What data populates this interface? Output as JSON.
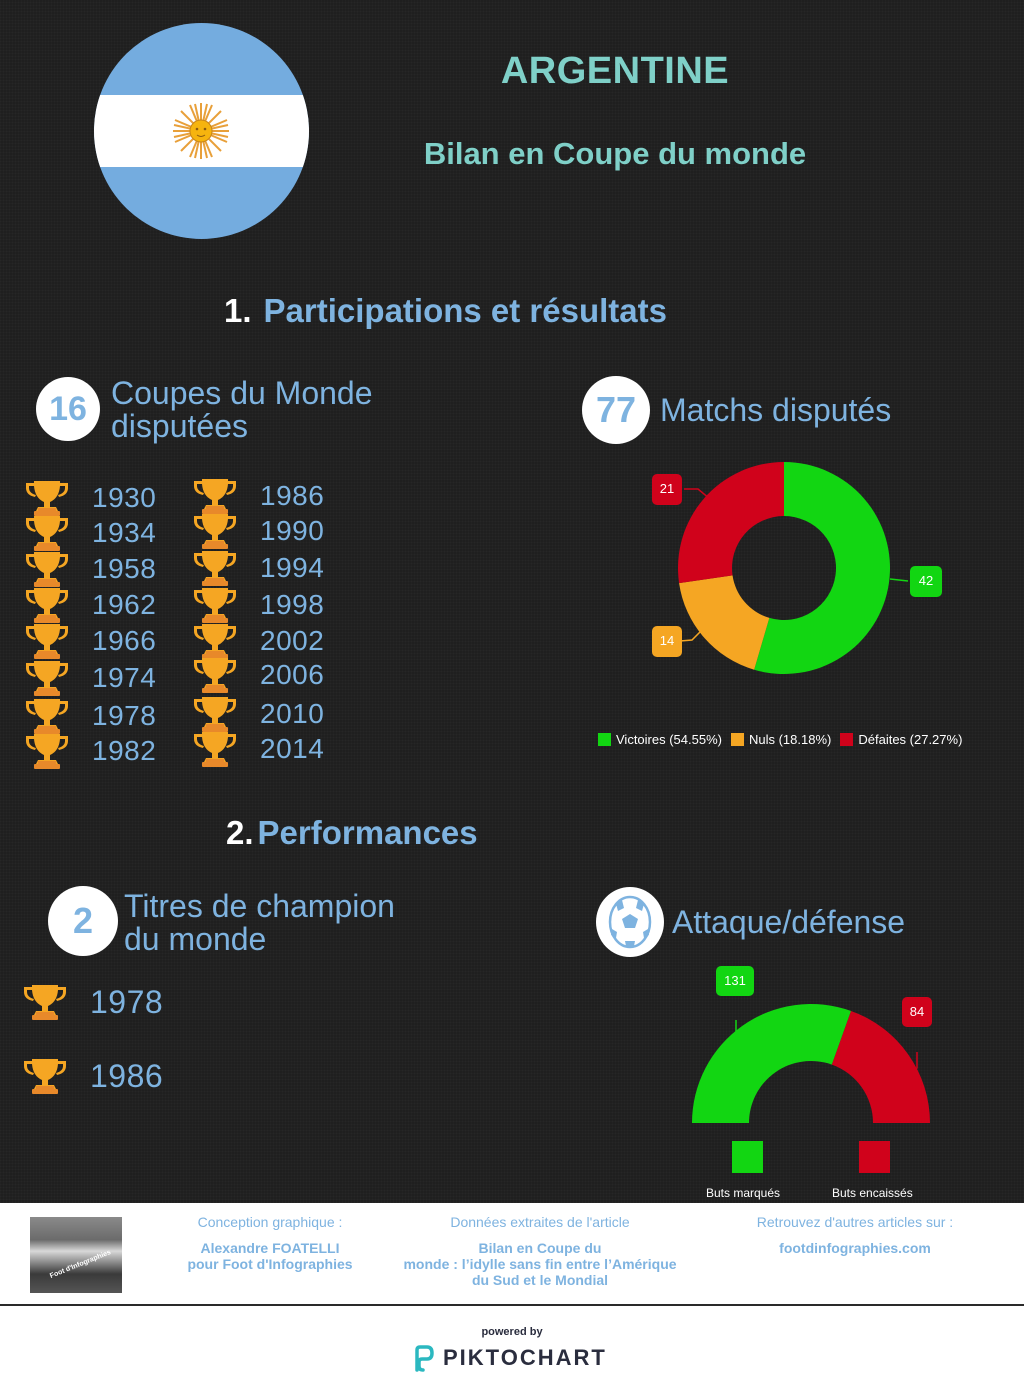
{
  "header": {
    "country": "ARGENTINE",
    "subtitle": "Bilan en Coupe du monde",
    "flag_icon": "argentina-flag-icon"
  },
  "section1": {
    "number": "1.",
    "title": "Participations et résultats",
    "participations": {
      "count": "16",
      "label_line1": "Coupes du Monde",
      "label_line2": "disputées",
      "years_col1": [
        "1930",
        "1934",
        "1958",
        "1962",
        "1966",
        "1974",
        "1978",
        "1982"
      ],
      "years_col2": [
        "1986",
        "1990",
        "1994",
        "1998",
        "2002",
        "2006",
        "2010",
        "2014"
      ]
    },
    "matches": {
      "count": "77",
      "label": "Matchs disputés"
    }
  },
  "section2": {
    "number": "2.",
    "title": "Performances",
    "titles": {
      "count": "2",
      "label_line1": "Titres de champion",
      "label_line2": "du monde",
      "years": [
        "1978",
        "1986"
      ]
    },
    "attack_defense": {
      "label": "Attaque/défense",
      "icon": "soccer-ball-icon"
    }
  },
  "colors": {
    "green": "#12d612",
    "orange": "#f5a623",
    "red": "#d0021b",
    "accent_blue": "#7eb3e0",
    "teal": "#7fd0c8"
  },
  "chart_data": [
    {
      "type": "pie",
      "variant": "donut",
      "title": "Matchs disputés",
      "categories": [
        "Victoires",
        "Nuls",
        "Défaites"
      ],
      "values": [
        42,
        14,
        21
      ],
      "percentages": [
        54.55,
        18.18,
        27.27
      ],
      "colors": [
        "#12d612",
        "#f5a623",
        "#d0021b"
      ],
      "legend": [
        "Victoires (54.55%)",
        "Nuls (18.18%)",
        "Défaites (27.27%)"
      ],
      "legend_position": "bottom"
    },
    {
      "type": "pie",
      "variant": "semi-donut",
      "title": "Attaque/défense",
      "categories": [
        "Buts marqués",
        "Buts encaissés"
      ],
      "values": [
        131,
        84
      ],
      "colors": [
        "#12d612",
        "#d0021b"
      ],
      "legend": [
        "Buts marqués",
        "Buts encaissés"
      ],
      "legend_position": "bottom"
    }
  ],
  "donut": {
    "labels": {
      "victoires": "42",
      "nuls": "14",
      "defaites": "21"
    },
    "legend": [
      "Victoires (54.55%)",
      "Nuls (18.18%)",
      "Défaites (27.27%)"
    ]
  },
  "semi": {
    "labels": {
      "marques": "131",
      "encaisses": "84"
    },
    "legend": [
      "Buts marqués",
      "Buts encaissés"
    ]
  },
  "footer": {
    "design_heading": "Conception graphique :",
    "design_line1": "Alexandre FOATELLI",
    "design_line2": "pour Foot d'Infographies",
    "data_heading": "Données extraites de l'article",
    "data_line1": "Bilan en Coupe du",
    "data_line2": "monde : l’idylle sans fin entre l’Amérique",
    "data_line3": "du Sud et le Mondial",
    "more_heading": "Retrouvez d'autres articles sur :",
    "more_link": "footdinfographies.com",
    "photo_caption": "Foot d'Infographies"
  },
  "powered": {
    "text": "powered by",
    "brand": "PIKTOCHART"
  }
}
